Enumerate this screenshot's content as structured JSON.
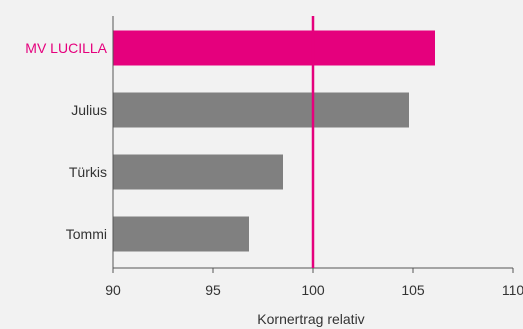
{
  "chart_data": {
    "type": "bar",
    "orientation": "horizontal",
    "title": "",
    "categories": [
      "MV LUCILLA",
      "Julius",
      "Türkis",
      "Tommi"
    ],
    "values": [
      106.1,
      104.8,
      98.5,
      96.8
    ],
    "xlabel": "Kornertrag relativ",
    "ylabel": "",
    "xlim": [
      90,
      110
    ],
    "xticks": [
      90,
      95,
      100,
      105,
      110
    ],
    "reference_line": 100,
    "highlight_category": "MV LUCILLA",
    "grid": false,
    "legend": "none",
    "colors": {
      "highlight": "#e5007d",
      "bar": "#808080",
      "axis": "#555555",
      "text": "#333333",
      "background": "#f2f2f2"
    }
  }
}
